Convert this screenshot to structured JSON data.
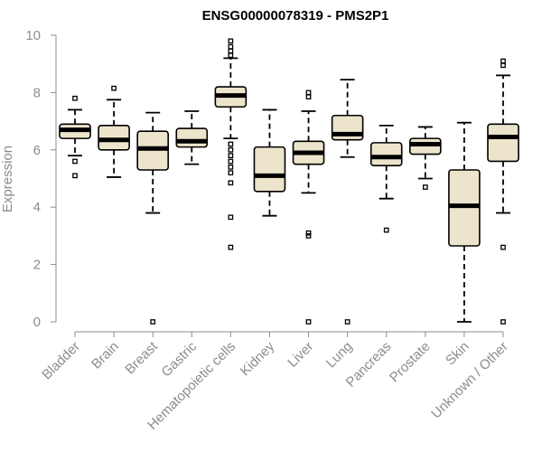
{
  "chart_data": {
    "type": "box",
    "title": "ENSG00000078319 - PMS2P1",
    "ylabel": "Expression",
    "xlabel": "",
    "ylim": [
      0,
      10
    ],
    "yticks": [
      0,
      2,
      4,
      6,
      8,
      10
    ],
    "box_color": "#ede4cc",
    "categories": [
      "Bladder",
      "Brain",
      "Breast",
      "Gastric",
      "Hematopoietic cells",
      "Kidney",
      "Liver",
      "Lung",
      "Pancreas",
      "Prostate",
      "Skin",
      "Unknown / Other"
    ],
    "boxes": [
      {
        "category": "Bladder",
        "whisker_low": 5.8,
        "q1": 6.4,
        "median": 6.7,
        "q3": 6.9,
        "whisker_high": 7.4,
        "outliers": [
          5.1,
          5.6,
          7.8
        ]
      },
      {
        "category": "Brain",
        "whisker_low": 5.05,
        "q1": 6.0,
        "median": 6.35,
        "q3": 6.85,
        "whisker_high": 7.75,
        "outliers": [
          8.15
        ]
      },
      {
        "category": "Breast",
        "whisker_low": 3.8,
        "q1": 5.3,
        "median": 6.05,
        "q3": 6.65,
        "whisker_high": 7.3,
        "outliers": [
          0.0
        ]
      },
      {
        "category": "Gastric",
        "whisker_low": 5.5,
        "q1": 6.1,
        "median": 6.3,
        "q3": 6.75,
        "whisker_high": 7.35,
        "outliers": []
      },
      {
        "category": "Hematopoietic cells",
        "whisker_low": 6.4,
        "q1": 7.5,
        "median": 7.9,
        "q3": 8.2,
        "whisker_high": 9.2,
        "outliers": [
          9.3,
          9.45,
          9.6,
          9.8,
          6.2,
          6.0,
          5.8,
          5.6,
          5.4,
          5.2,
          4.85,
          3.65,
          2.6
        ]
      },
      {
        "category": "Kidney",
        "whisker_low": 3.7,
        "q1": 4.55,
        "median": 5.1,
        "q3": 6.1,
        "whisker_high": 7.4,
        "outliers": []
      },
      {
        "category": "Liver",
        "whisker_low": 4.5,
        "q1": 5.5,
        "median": 5.9,
        "q3": 6.3,
        "whisker_high": 7.35,
        "outliers": [
          7.85,
          8.0,
          3.1,
          3.0,
          0.0
        ]
      },
      {
        "category": "Lung",
        "whisker_low": 5.75,
        "q1": 6.35,
        "median": 6.55,
        "q3": 7.2,
        "whisker_high": 8.45,
        "outliers": [
          0.0
        ]
      },
      {
        "category": "Pancreas",
        "whisker_low": 4.3,
        "q1": 5.45,
        "median": 5.75,
        "q3": 6.25,
        "whisker_high": 6.85,
        "outliers": [
          3.2
        ]
      },
      {
        "category": "Prostate",
        "whisker_low": 5.0,
        "q1": 5.85,
        "median": 6.2,
        "q3": 6.4,
        "whisker_high": 6.8,
        "outliers": [
          4.7
        ]
      },
      {
        "category": "Skin",
        "whisker_low": 0.0,
        "q1": 2.65,
        "median": 4.05,
        "q3": 5.3,
        "whisker_high": 6.95,
        "outliers": []
      },
      {
        "category": "Unknown / Other",
        "whisker_low": 3.8,
        "q1": 5.6,
        "median": 6.45,
        "q3": 6.9,
        "whisker_high": 8.6,
        "outliers": [
          8.95,
          9.1,
          2.6,
          0.0
        ]
      }
    ]
  }
}
